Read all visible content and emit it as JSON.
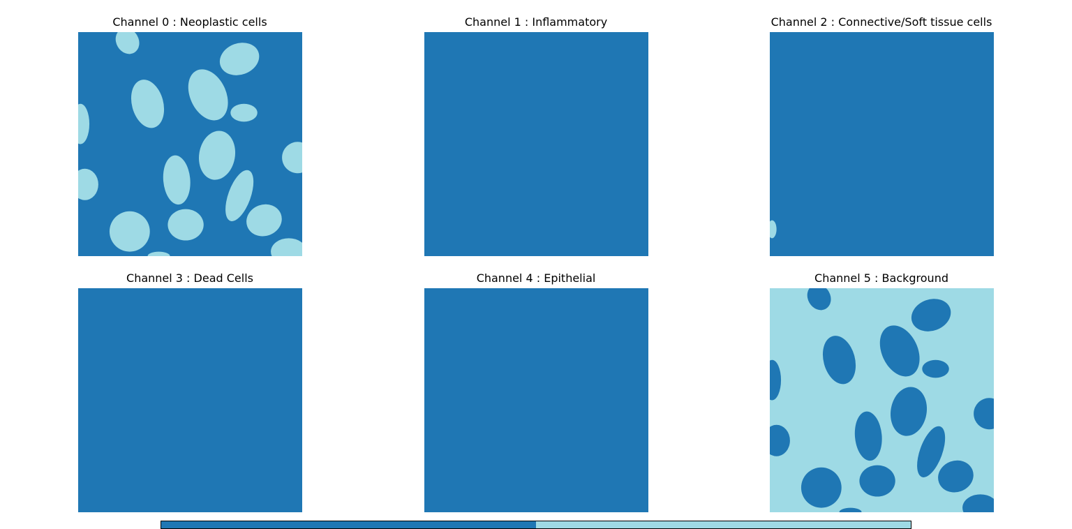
{
  "colors": {
    "class_0": "#1f77b4",
    "class_1": "#9edae5"
  },
  "panels": [
    {
      "title": "Channel 0 : Neoplastic cells",
      "foreground": "cells",
      "colormap": "normal"
    },
    {
      "title": "Channel 1 : Inflammatory",
      "foreground": "empty",
      "colormap": "normal"
    },
    {
      "title": "Channel 2 : Connective/Soft tissue cells",
      "foreground": "corner",
      "colormap": "normal"
    },
    {
      "title": "Channel 3 : Dead Cells",
      "foreground": "empty",
      "colormap": "normal"
    },
    {
      "title": "Channel 4 : Epithelial",
      "foreground": "empty",
      "colormap": "normal"
    },
    {
      "title": "Channel 5 : Background",
      "foreground": "cells",
      "colormap": "inverted"
    }
  ],
  "colorbar": {
    "segments": 2
  }
}
